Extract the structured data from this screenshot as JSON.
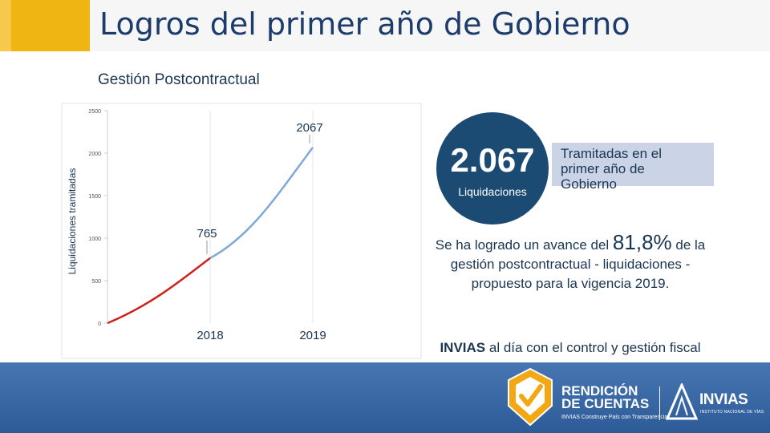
{
  "header": {
    "title": "Logros del primer año de Gobierno"
  },
  "section": {
    "subtitle": "Gestión Postcontractual"
  },
  "chart_data": {
    "type": "line",
    "ylabel": "Liquidaciones tramitadas",
    "ylim": [
      0,
      2500
    ],
    "y_ticks": [
      "2500",
      "2000",
      "1500",
      "1000",
      "500",
      "0"
    ],
    "x_ticks": [
      "2018",
      "2019"
    ],
    "series": [
      {
        "color": "#d0211c",
        "points": [
          [
            0,
            0
          ],
          [
            1,
            765
          ]
        ]
      },
      {
        "color": "#7ea9d9",
        "points": [
          [
            1,
            765
          ],
          [
            2,
            2067
          ]
        ]
      }
    ],
    "data_labels": [
      {
        "text": "765",
        "x": 1,
        "y": 765
      },
      {
        "text": "2067",
        "x": 2,
        "y": 2067
      }
    ]
  },
  "highlight": {
    "value": "2.067",
    "label": "Liquidaciones"
  },
  "info_box": {
    "text": "Tramitadas en el primer año de Gobierno"
  },
  "progress": {
    "prefix": "Se ha logrado un avance del",
    "percent": "81,8%",
    "suffix": "de la gestión postcontractual - liquidaciones - propuesto para la vigencia 2019."
  },
  "footer": {
    "brand": "INVIAS",
    "text": "al día con el control y gestión fiscal"
  },
  "bottom": {
    "rendicion_line1": "RENDICIÓN",
    "rendicion_line2": "DE CUENTAS",
    "rendicion_tagline": "INVIAS Construye País con Transparencia",
    "invias_name": "INVIAS",
    "invias_sub": "INSTITUTO NACIONAL DE VÍAS"
  }
}
